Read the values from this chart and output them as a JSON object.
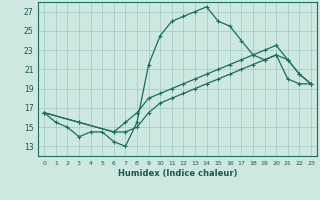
{
  "xlabel": "Humidex (Indice chaleur)",
  "background_color": "#cce8e0",
  "grid_color": "#aacccc",
  "line_color": "#1a6e5e",
  "xlim": [
    -0.5,
    23.5
  ],
  "ylim": [
    12.0,
    28.0
  ],
  "xticks": [
    0,
    1,
    2,
    3,
    4,
    5,
    6,
    7,
    8,
    9,
    10,
    11,
    12,
    13,
    14,
    15,
    16,
    17,
    18,
    19,
    20,
    21,
    22,
    23
  ],
  "yticks": [
    13,
    15,
    17,
    19,
    21,
    23,
    25,
    27
  ],
  "series1_x": [
    0,
    1,
    2,
    3,
    4,
    5,
    6,
    7,
    8,
    9,
    10,
    11,
    12,
    13,
    14,
    15,
    16,
    17,
    18,
    19,
    20,
    21,
    22,
    23
  ],
  "series1_y": [
    16.5,
    15.5,
    15.0,
    14.0,
    14.5,
    14.5,
    13.5,
    13.0,
    15.5,
    21.5,
    24.5,
    26.0,
    26.5,
    27.0,
    27.5,
    26.0,
    25.5,
    24.0,
    22.5,
    22.0,
    22.5,
    20.0,
    19.5,
    19.5
  ],
  "series2_x": [
    0,
    3,
    6,
    7,
    8,
    9,
    10,
    11,
    12,
    13,
    14,
    15,
    16,
    17,
    18,
    19,
    20,
    21,
    22,
    23
  ],
  "series2_y": [
    16.5,
    15.5,
    14.5,
    14.5,
    15.0,
    16.5,
    17.5,
    18.0,
    18.5,
    19.0,
    19.5,
    20.0,
    20.5,
    21.0,
    21.5,
    22.0,
    22.5,
    22.0,
    20.5,
    19.5
  ],
  "series3_x": [
    0,
    3,
    6,
    7,
    8,
    9,
    10,
    11,
    12,
    13,
    14,
    15,
    16,
    17,
    18,
    19,
    20,
    21,
    22,
    23
  ],
  "series3_y": [
    16.5,
    15.5,
    14.5,
    15.5,
    16.5,
    18.0,
    18.5,
    19.0,
    19.5,
    20.0,
    20.5,
    21.0,
    21.5,
    22.0,
    22.5,
    23.0,
    23.5,
    22.0,
    20.5,
    19.5
  ]
}
